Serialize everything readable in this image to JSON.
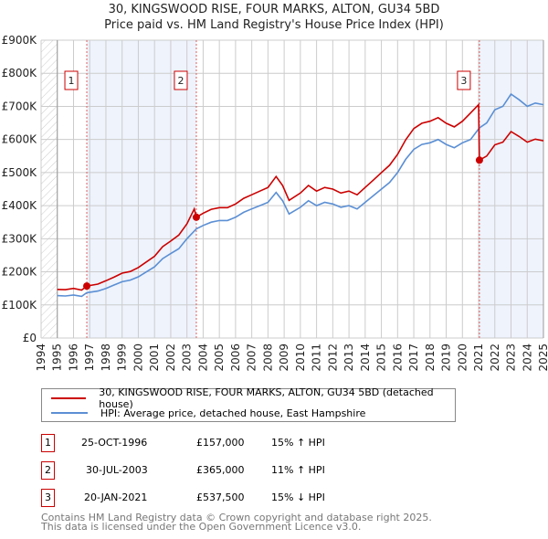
{
  "chart_data": {
    "type": "line",
    "title": "30, KINGSWOOD RISE, FOUR MARKS, ALTON, GU34 5BD",
    "subtitle": "Price paid vs. HM Land Registry's House Price Index (HPI)",
    "xlim": [
      1994,
      2025
    ],
    "ylim": [
      0,
      900
    ],
    "y_ticks": [
      0,
      100,
      200,
      300,
      400,
      500,
      600,
      700,
      800,
      900
    ],
    "y_tick_labels": [
      "£0",
      "£100K",
      "£200K",
      "£300K",
      "£400K",
      "£500K",
      "£600K",
      "£700K",
      "£800K",
      "£900K"
    ],
    "x_ticks": [
      1994,
      1995,
      1996,
      1997,
      1998,
      1999,
      2000,
      2001,
      2002,
      2003,
      2004,
      2005,
      2006,
      2007,
      2008,
      2009,
      2010,
      2011,
      2012,
      2013,
      2014,
      2015,
      2016,
      2017,
      2018,
      2019,
      2020,
      2021,
      2022,
      2023,
      2024,
      2025
    ],
    "grid": true,
    "series": [
      {
        "name": "30, KINGSWOOD RISE, FOUR MARKS, ALTON, GU34 5BD (detached house)",
        "color": "#cc0000",
        "x": [
          1995,
          1995.5,
          1996,
          1996.5,
          1996.82,
          1997.5,
          1998,
          1998.5,
          1999,
          1999.5,
          2000,
          2000.5,
          2001,
          2001.5,
          2002,
          2002.5,
          2003,
          2003.45,
          2003.58,
          2004,
          2004.5,
          2005,
          2005.5,
          2006,
          2006.5,
          2007,
          2007.5,
          2008,
          2008.5,
          2008.9,
          2009.3,
          2010,
          2010.5,
          2011,
          2011.5,
          2012,
          2012.5,
          2013,
          2013.5,
          2014,
          2014.5,
          2015,
          2015.5,
          2016,
          2016.5,
          2017,
          2017.5,
          2018,
          2018.5,
          2019,
          2019.5,
          2020,
          2020.5,
          2021.0,
          2021.05,
          2021.5,
          2022,
          2022.5,
          2023,
          2023.5,
          2024,
          2024.5,
          2025
        ],
        "y": [
          147,
          146,
          150,
          145,
          157,
          163,
          173,
          184,
          196,
          201,
          213,
          230,
          247,
          276,
          293,
          311,
          345,
          390,
          365,
          377,
          389,
          394,
          394,
          405,
          422,
          433,
          444,
          455,
          488,
          461,
          416,
          438,
          461,
          444,
          455,
          450,
          438,
          444,
          433,
          455,
          477,
          500,
          522,
          555,
          599,
          633,
          649,
          655,
          666,
          649,
          638,
          655,
          680,
          705,
          537.5,
          550,
          584,
          592,
          624,
          609,
          592,
          601,
          596
        ]
      },
      {
        "name": "HPI: Average price, detached house, East Hampshire",
        "color": "#5b8fd4",
        "x": [
          1995,
          1995.5,
          1996,
          1996.5,
          1996.82,
          1997.5,
          1998,
          1998.5,
          1999,
          1999.5,
          2000,
          2000.5,
          2001,
          2001.5,
          2002,
          2002.5,
          2003,
          2003.58,
          2004,
          2004.5,
          2005,
          2005.5,
          2006,
          2006.5,
          2007,
          2007.5,
          2008,
          2008.5,
          2008.9,
          2009.3,
          2010,
          2010.5,
          2011,
          2011.5,
          2012,
          2012.5,
          2013,
          2013.5,
          2014,
          2014.5,
          2015,
          2015.5,
          2016,
          2016.5,
          2017,
          2017.5,
          2018,
          2018.5,
          2019,
          2019.5,
          2020,
          2020.5,
          2021.05,
          2021.5,
          2022,
          2022.5,
          2023,
          2023.5,
          2024,
          2024.5,
          2025
        ],
        "y": [
          128,
          127,
          130,
          126,
          137,
          142,
          150,
          160,
          170,
          175,
          185,
          200,
          215,
          240,
          255,
          270,
          300,
          330,
          340,
          350,
          355,
          355,
          365,
          380,
          390,
          400,
          410,
          440,
          415,
          375,
          395,
          415,
          400,
          410,
          405,
          395,
          400,
          390,
          410,
          430,
          450,
          470,
          500,
          540,
          570,
          585,
          590,
          600,
          585,
          575,
          590,
          600,
          635,
          650,
          690,
          700,
          737,
          720,
          700,
          710,
          705
        ]
      }
    ],
    "sales": [
      {
        "id": "1",
        "x": 1996.82,
        "value": 157
      },
      {
        "id": "2",
        "x": 2003.58,
        "value": 365
      },
      {
        "id": "3",
        "x": 2021.05,
        "value": 537.5
      }
    ],
    "hatch_range": [
      1994,
      1995
    ],
    "shaded_ranges": [
      [
        1996.82,
        2003.58
      ],
      [
        2021.05,
        2025
      ]
    ],
    "legend_position": "below"
  },
  "title_line1": "30, KINGSWOOD RISE, FOUR MARKS, ALTON, GU34 5BD",
  "title_line2": "Price paid vs. HM Land Registry's House Price Index (HPI)",
  "legend": {
    "property": "30, KINGSWOOD RISE, FOUR MARKS, ALTON, GU34 5BD (detached house)",
    "hpi": "HPI: Average price, detached house, East Hampshire"
  },
  "transactions": [
    {
      "num": "1",
      "date": "25-OCT-1996",
      "price": "£157,000",
      "hpi": "15% ↑ HPI"
    },
    {
      "num": "2",
      "date": "30-JUL-2003",
      "price": "£365,000",
      "hpi": "11% ↑ HPI"
    },
    {
      "num": "3",
      "date": "20-JAN-2021",
      "price": "£537,500",
      "hpi": "15% ↓ HPI"
    }
  ],
  "footer": {
    "line1": "Contains HM Land Registry data © Crown copyright and database right 2025.",
    "line2": "This data is licensed under the Open Government Licence v3.0."
  }
}
